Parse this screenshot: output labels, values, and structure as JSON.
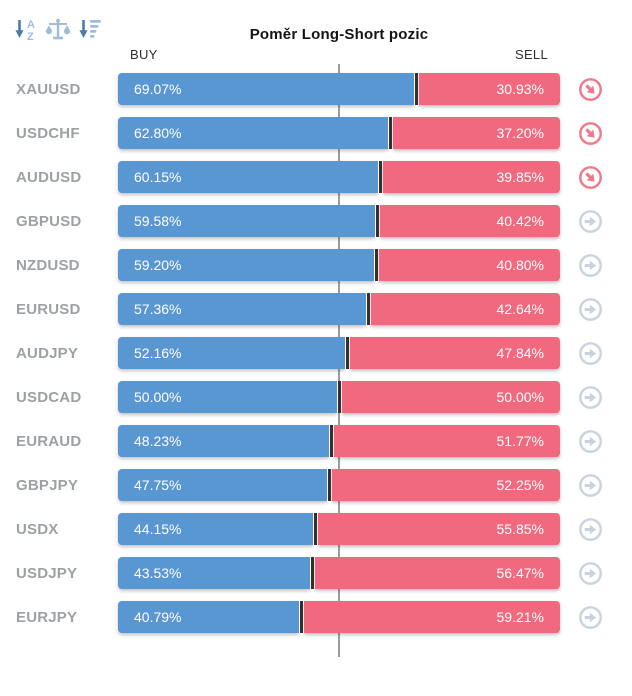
{
  "header": {
    "title": "Poměr Long-Short pozic",
    "buy_label": "BUY",
    "sell_label": "SELL",
    "toolbar_icons": [
      "sort-alphabetical-icon",
      "scales-icon",
      "sort-amount-icon"
    ]
  },
  "colors": {
    "buy": "#5997d2",
    "sell": "#f0697e",
    "divider": "#382f33",
    "midline": "#9c9c9c",
    "trend_red": "#f0788a",
    "trend_gray": "#c9d2dd",
    "toolbar_dark": "#4a7dad",
    "toolbar_light": "#9fbcd8"
  },
  "chart_data": {
    "type": "bar",
    "orientation": "horizontal",
    "stacked": true,
    "title": "Poměr Long-Short pozic",
    "categories": [
      "XAUUSD",
      "USDCHF",
      "AUDUSD",
      "GBPUSD",
      "NZDUSD",
      "EURUSD",
      "AUDJPY",
      "USDCAD",
      "EURAUD",
      "GBPJPY",
      "USDX",
      "USDJPY",
      "EURJPY"
    ],
    "series": [
      {
        "name": "BUY",
        "color": "#5997d2",
        "values": [
          69.07,
          62.8,
          60.15,
          59.58,
          59.2,
          57.36,
          52.16,
          50.0,
          48.23,
          47.75,
          44.15,
          43.53,
          40.79
        ]
      },
      {
        "name": "SELL",
        "color": "#f0697e",
        "values": [
          30.93,
          37.2,
          39.85,
          40.42,
          40.8,
          42.64,
          47.84,
          50.0,
          51.77,
          52.25,
          55.85,
          56.47,
          59.21
        ]
      }
    ],
    "xlim": [
      0,
      100
    ],
    "reference_line": 50,
    "value_format": "percent",
    "legend_position": "top (BUY left, SELL right)"
  },
  "rows": [
    {
      "symbol": "XAUUSD",
      "buy_pct": 69.07,
      "sell_pct": 30.93,
      "buy_text": "69.07%",
      "sell_text": "30.93%",
      "trend": "down"
    },
    {
      "symbol": "USDCHF",
      "buy_pct": 62.8,
      "sell_pct": 37.2,
      "buy_text": "62.80%",
      "sell_text": "37.20%",
      "trend": "down"
    },
    {
      "symbol": "AUDUSD",
      "buy_pct": 60.15,
      "sell_pct": 39.85,
      "buy_text": "60.15%",
      "sell_text": "39.85%",
      "trend": "down"
    },
    {
      "symbol": "GBPUSD",
      "buy_pct": 59.58,
      "sell_pct": 40.42,
      "buy_text": "59.58%",
      "sell_text": "40.42%",
      "trend": "right"
    },
    {
      "symbol": "NZDUSD",
      "buy_pct": 59.2,
      "sell_pct": 40.8,
      "buy_text": "59.20%",
      "sell_text": "40.80%",
      "trend": "right"
    },
    {
      "symbol": "EURUSD",
      "buy_pct": 57.36,
      "sell_pct": 42.64,
      "buy_text": "57.36%",
      "sell_text": "42.64%",
      "trend": "right"
    },
    {
      "symbol": "AUDJPY",
      "buy_pct": 52.16,
      "sell_pct": 47.84,
      "buy_text": "52.16%",
      "sell_text": "47.84%",
      "trend": "right"
    },
    {
      "symbol": "USDCAD",
      "buy_pct": 50.0,
      "sell_pct": 50.0,
      "buy_text": "50.00%",
      "sell_text": "50.00%",
      "trend": "right"
    },
    {
      "symbol": "EURAUD",
      "buy_pct": 48.23,
      "sell_pct": 51.77,
      "buy_text": "48.23%",
      "sell_text": "51.77%",
      "trend": "right"
    },
    {
      "symbol": "GBPJPY",
      "buy_pct": 47.75,
      "sell_pct": 52.25,
      "buy_text": "47.75%",
      "sell_text": "52.25%",
      "trend": "right"
    },
    {
      "symbol": "USDX",
      "buy_pct": 44.15,
      "sell_pct": 55.85,
      "buy_text": "44.15%",
      "sell_text": "55.85%",
      "trend": "right"
    },
    {
      "symbol": "USDJPY",
      "buy_pct": 43.53,
      "sell_pct": 56.47,
      "buy_text": "43.53%",
      "sell_text": "56.47%",
      "trend": "right"
    },
    {
      "symbol": "EURJPY",
      "buy_pct": 40.79,
      "sell_pct": 59.21,
      "buy_text": "40.79%",
      "sell_text": "59.21%",
      "trend": "right"
    }
  ]
}
